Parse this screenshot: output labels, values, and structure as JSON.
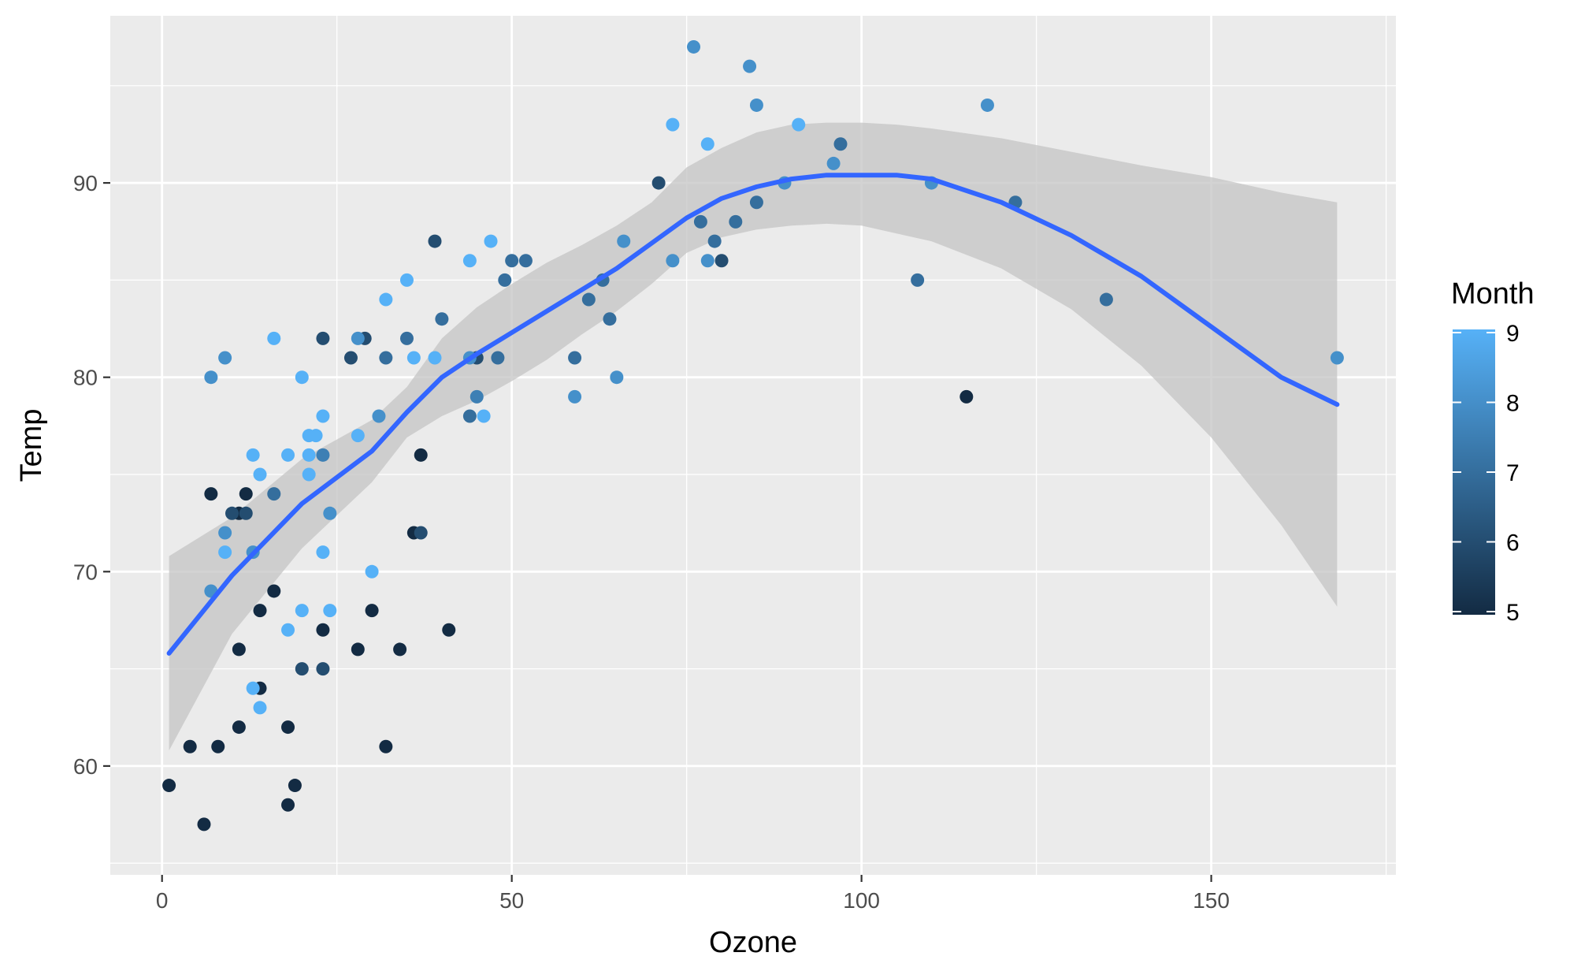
{
  "chart_data": {
    "type": "scatter",
    "xlabel": "Ozone",
    "ylabel": "Temp",
    "xlim": [
      -7.4,
      176.4
    ],
    "ylim": [
      54.4,
      98.6
    ],
    "x_ticks": [
      0,
      50,
      100,
      150
    ],
    "y_ticks": [
      60,
      70,
      80,
      90
    ],
    "x_tick_labels": [
      "0",
      "50",
      "100",
      "150"
    ],
    "y_tick_labels": [
      "60",
      "70",
      "80",
      "90"
    ],
    "grid": true,
    "legend": {
      "title": "Month",
      "type": "colorbar",
      "placement": "right",
      "range": [
        5,
        9
      ],
      "ticks": [
        5,
        6,
        7,
        8,
        9
      ],
      "tick_labels": [
        "5",
        "6",
        "7",
        "8",
        "9"
      ],
      "low_color": "#132b43",
      "high_color": "#56b1f7"
    },
    "colors": {
      "panel_background": "#ebebeb",
      "grid_major": "#ffffff",
      "smooth_line": "#3366ff",
      "confidence_band": "#c4c4c4"
    },
    "points": [
      {
        "x": 1,
        "y": 59,
        "month": 5
      },
      {
        "x": 4,
        "y": 61,
        "month": 5
      },
      {
        "x": 6,
        "y": 57,
        "month": 5
      },
      {
        "x": 7,
        "y": 74,
        "month": 5
      },
      {
        "x": 8,
        "y": 61,
        "month": 5
      },
      {
        "x": 11,
        "y": 66,
        "month": 5
      },
      {
        "x": 11,
        "y": 62,
        "month": 5
      },
      {
        "x": 11,
        "y": 73,
        "month": 5
      },
      {
        "x": 12,
        "y": 74,
        "month": 5
      },
      {
        "x": 14,
        "y": 68,
        "month": 5
      },
      {
        "x": 14,
        "y": 64,
        "month": 5
      },
      {
        "x": 16,
        "y": 69,
        "month": 5
      },
      {
        "x": 18,
        "y": 62,
        "month": 5
      },
      {
        "x": 18,
        "y": 58,
        "month": 5
      },
      {
        "x": 19,
        "y": 59,
        "month": 5
      },
      {
        "x": 23,
        "y": 67,
        "month": 5
      },
      {
        "x": 28,
        "y": 66,
        "month": 5
      },
      {
        "x": 30,
        "y": 68,
        "month": 5
      },
      {
        "x": 32,
        "y": 61,
        "month": 5
      },
      {
        "x": 34,
        "y": 66,
        "month": 5
      },
      {
        "x": 36,
        "y": 72,
        "month": 5
      },
      {
        "x": 37,
        "y": 76,
        "month": 5
      },
      {
        "x": 41,
        "y": 67,
        "month": 5
      },
      {
        "x": 115,
        "y": 79,
        "month": 5
      },
      {
        "x": 23,
        "y": 65,
        "month": 6
      },
      {
        "x": 12,
        "y": 73,
        "month": 6
      },
      {
        "x": 29,
        "y": 82,
        "month": 6
      },
      {
        "x": 37,
        "y": 72,
        "month": 6
      },
      {
        "x": 39,
        "y": 87,
        "month": 6
      },
      {
        "x": 45,
        "y": 81,
        "month": 6
      },
      {
        "x": 71,
        "y": 90,
        "month": 6
      },
      {
        "x": 10,
        "y": 73,
        "month": 6
      },
      {
        "x": 80,
        "y": 86,
        "month": 6
      },
      {
        "x": 23,
        "y": 82,
        "month": 6
      },
      {
        "x": 27,
        "y": 81,
        "month": 6
      },
      {
        "x": 20,
        "y": 65,
        "month": 6
      },
      {
        "x": 40,
        "y": 83,
        "month": 7
      },
      {
        "x": 32,
        "y": 81,
        "month": 7
      },
      {
        "x": 16,
        "y": 74,
        "month": 7
      },
      {
        "x": 49,
        "y": 85,
        "month": 7
      },
      {
        "x": 50,
        "y": 86,
        "month": 7
      },
      {
        "x": 52,
        "y": 86,
        "month": 7
      },
      {
        "x": 64,
        "y": 83,
        "month": 7
      },
      {
        "x": 59,
        "y": 81,
        "month": 7
      },
      {
        "x": 79,
        "y": 87,
        "month": 7
      },
      {
        "x": 35,
        "y": 82,
        "month": 7
      },
      {
        "x": 48,
        "y": 81,
        "month": 7
      },
      {
        "x": 135,
        "y": 84,
        "month": 7
      },
      {
        "x": 61,
        "y": 84,
        "month": 7
      },
      {
        "x": 63,
        "y": 85,
        "month": 7
      },
      {
        "x": 77,
        "y": 88,
        "month": 7
      },
      {
        "x": 97,
        "y": 92,
        "month": 7
      },
      {
        "x": 85,
        "y": 89,
        "month": 7
      },
      {
        "x": 82,
        "y": 88,
        "month": 7
      },
      {
        "x": 108,
        "y": 85,
        "month": 7
      },
      {
        "x": 122,
        "y": 89,
        "month": 7
      },
      {
        "x": 44,
        "y": 78,
        "month": 7
      },
      {
        "x": 45,
        "y": 79,
        "month": 7.5
      },
      {
        "x": 23,
        "y": 76,
        "month": 7.5
      },
      {
        "x": 89,
        "y": 90,
        "month": 8
      },
      {
        "x": 110,
        "y": 90,
        "month": 8
      },
      {
        "x": 168,
        "y": 81,
        "month": 8
      },
      {
        "x": 73,
        "y": 86,
        "month": 8
      },
      {
        "x": 76,
        "y": 97,
        "month": 8
      },
      {
        "x": 118,
        "y": 94,
        "month": 8
      },
      {
        "x": 84,
        "y": 96,
        "month": 8
      },
      {
        "x": 85,
        "y": 94,
        "month": 8
      },
      {
        "x": 96,
        "y": 91,
        "month": 8
      },
      {
        "x": 66,
        "y": 87,
        "month": 8
      },
      {
        "x": 59,
        "y": 79,
        "month": 8
      },
      {
        "x": 65,
        "y": 80,
        "month": 8
      },
      {
        "x": 78,
        "y": 86,
        "month": 8
      },
      {
        "x": 9,
        "y": 72,
        "month": 8
      },
      {
        "x": 44,
        "y": 81,
        "month": 8
      },
      {
        "x": 28,
        "y": 82,
        "month": 8
      },
      {
        "x": 31,
        "y": 78,
        "month": 8
      },
      {
        "x": 24,
        "y": 73,
        "month": 8
      },
      {
        "x": 13,
        "y": 71,
        "month": 8
      },
      {
        "x": 7,
        "y": 69,
        "month": 8
      },
      {
        "x": 9,
        "y": 81,
        "month": 8
      },
      {
        "x": 7,
        "y": 80,
        "month": 8
      },
      {
        "x": 91,
        "y": 93,
        "month": 9
      },
      {
        "x": 73,
        "y": 93,
        "month": 9
      },
      {
        "x": 78,
        "y": 92,
        "month": 9
      },
      {
        "x": 47,
        "y": 87,
        "month": 9
      },
      {
        "x": 44,
        "y": 86,
        "month": 9
      },
      {
        "x": 35,
        "y": 85,
        "month": 9
      },
      {
        "x": 32,
        "y": 84,
        "month": 9
      },
      {
        "x": 16,
        "y": 82,
        "month": 9
      },
      {
        "x": 20,
        "y": 80,
        "month": 9
      },
      {
        "x": 21,
        "y": 77,
        "month": 9
      },
      {
        "x": 22,
        "y": 77,
        "month": 9
      },
      {
        "x": 28,
        "y": 77,
        "month": 9
      },
      {
        "x": 36,
        "y": 81,
        "month": 9
      },
      {
        "x": 39,
        "y": 81,
        "month": 9
      },
      {
        "x": 23,
        "y": 78,
        "month": 9
      },
      {
        "x": 21,
        "y": 76,
        "month": 9
      },
      {
        "x": 46,
        "y": 78,
        "month": 9
      },
      {
        "x": 13,
        "y": 76,
        "month": 9
      },
      {
        "x": 18,
        "y": 76,
        "month": 9
      },
      {
        "x": 14,
        "y": 75,
        "month": 9
      },
      {
        "x": 21,
        "y": 75,
        "month": 9
      },
      {
        "x": 23,
        "y": 71,
        "month": 9
      },
      {
        "x": 9,
        "y": 71,
        "month": 9
      },
      {
        "x": 30,
        "y": 70,
        "month": 9
      },
      {
        "x": 20,
        "y": 68,
        "month": 9
      },
      {
        "x": 24,
        "y": 68,
        "month": 9
      },
      {
        "x": 18,
        "y": 67,
        "month": 9
      },
      {
        "x": 13,
        "y": 64,
        "month": 9
      },
      {
        "x": 14,
        "y": 63,
        "month": 9
      }
    ],
    "smooth": {
      "method": "loess",
      "x": [
        1,
        10,
        20,
        30,
        35,
        40,
        45,
        50,
        55,
        60,
        65,
        70,
        75,
        80,
        85,
        90,
        95,
        100,
        105,
        110,
        120,
        130,
        140,
        150,
        160,
        168
      ],
      "y": [
        65.8,
        69.8,
        73.5,
        76.2,
        78.2,
        80.0,
        81.2,
        82.3,
        83.4,
        84.5,
        85.6,
        86.9,
        88.2,
        89.2,
        89.8,
        90.2,
        90.4,
        90.4,
        90.4,
        90.2,
        89.0,
        87.3,
        85.2,
        82.6,
        80.0,
        78.6
      ],
      "ci_upper": [
        70.8,
        72.8,
        75.8,
        77.8,
        79.5,
        82.0,
        83.6,
        84.8,
        85.9,
        86.8,
        87.8,
        89.0,
        90.8,
        91.8,
        92.6,
        93.0,
        93.1,
        93.1,
        93.0,
        92.8,
        92.3,
        91.6,
        90.9,
        90.3,
        89.5,
        89.0
      ],
      "ci_lower": [
        60.8,
        66.8,
        71.2,
        74.6,
        76.9,
        78.0,
        78.8,
        79.8,
        80.9,
        82.2,
        83.4,
        84.8,
        86.4,
        87.2,
        87.6,
        87.8,
        87.9,
        87.8,
        87.4,
        87.0,
        85.6,
        83.5,
        80.6,
        76.9,
        72.4,
        68.2
      ]
    }
  }
}
